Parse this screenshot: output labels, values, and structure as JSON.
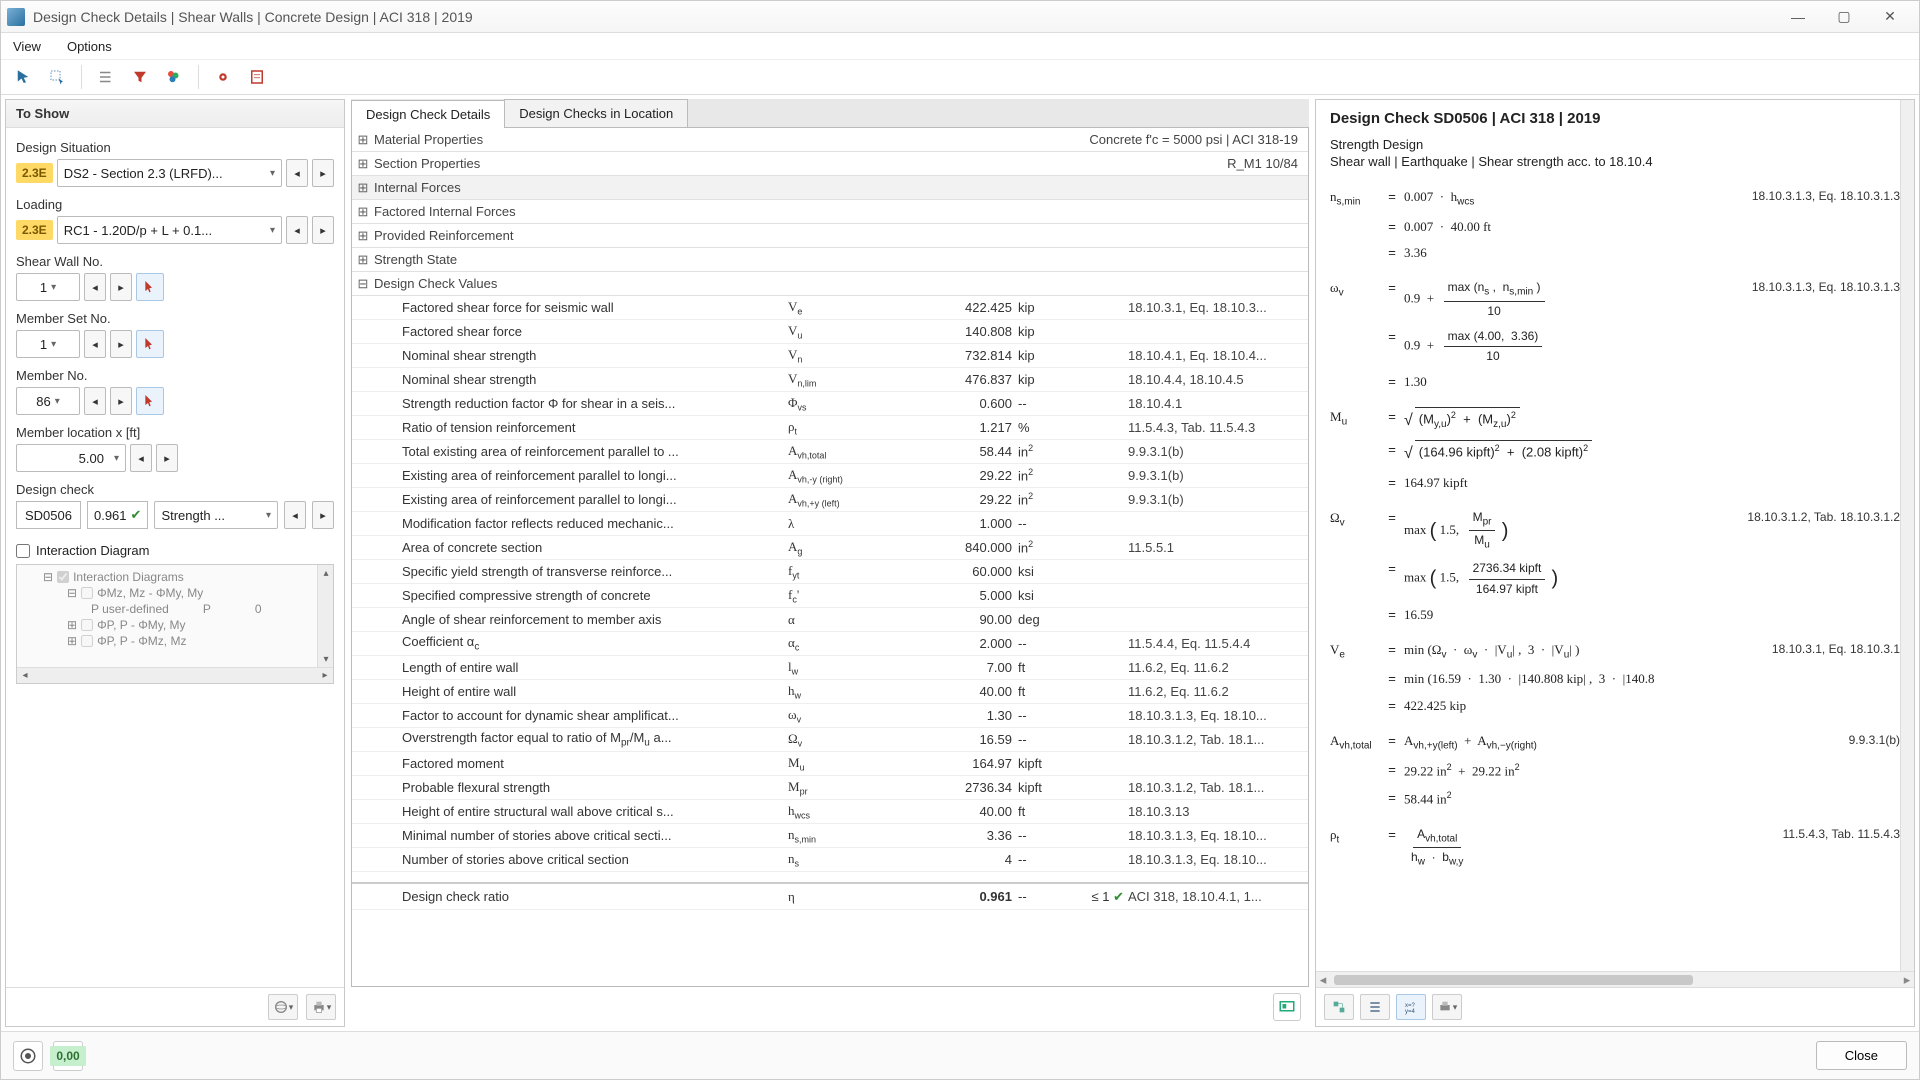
{
  "window": {
    "title": "Design Check Details | Shear Walls | Concrete Design | ACI 318 | 2019"
  },
  "menu": {
    "view": "View",
    "options": "Options"
  },
  "left": {
    "header": "To Show",
    "design_situation_label": "Design Situation",
    "ds_badge": "2.3E",
    "ds_value": "DS2 - Section 2.3 (LRFD)...",
    "loading_label": "Loading",
    "load_badge": "2.3E",
    "load_value": "RC1 - 1.20D/p + L + 0.1...",
    "shearwall_label": "Shear Wall No.",
    "shearwall_value": "1",
    "memberset_label": "Member Set No.",
    "memberset_value": "1",
    "member_label": "Member No.",
    "member_value": "86",
    "location_label": "Member location x [ft]",
    "location_value": "5.00",
    "designcheck_label": "Design check",
    "dc_code": "SD0506",
    "dc_ratio": "0.961",
    "dc_desc": "Strength ...",
    "interaction_label": "Interaction Diagram",
    "tree": {
      "root": "Interaction Diagrams",
      "n1": "ΦMz, Mz - ΦMy, My",
      "n2": "P user-defined",
      "n2_val": "P",
      "n2_num": "0",
      "n3": "ΦP, P - ΦMy, My",
      "n4": "ΦP, P - ΦMz, Mz"
    }
  },
  "tabs": {
    "t1": "Design Check Details",
    "t2": "Design Checks in Location"
  },
  "categories": {
    "material": {
      "label": "Material Properties",
      "right": "Concrete f'c = 5000 psi | ACI 318-19"
    },
    "section": {
      "label": "Section Properties",
      "right": "R_M1 10/84"
    },
    "internal": {
      "label": "Internal Forces"
    },
    "factored": {
      "label": "Factored Internal Forces"
    },
    "provided": {
      "label": "Provided Reinforcement"
    },
    "strength": {
      "label": "Strength State"
    },
    "dcv": {
      "label": "Design Check Values"
    }
  },
  "rows": [
    {
      "desc": "Factored shear force for seismic wall",
      "sym": "V<sub>e</sub>",
      "val": "422.425",
      "unit": "kip",
      "ref": "18.10.3.1, Eq. 18.10.3..."
    },
    {
      "desc": "Factored shear force",
      "sym": "V<sub>u</sub>",
      "val": "140.808",
      "unit": "kip",
      "ref": ""
    },
    {
      "desc": "Nominal shear strength",
      "sym": "V<sub>n</sub>",
      "val": "732.814",
      "unit": "kip",
      "ref": "18.10.4.1, Eq. 18.10.4..."
    },
    {
      "desc": "Nominal shear strength",
      "sym": "V<sub>n,lim</sub>",
      "val": "476.837",
      "unit": "kip",
      "ref": "18.10.4.4, 18.10.4.5"
    },
    {
      "desc": "Strength reduction factor Φ for shear in a seis...",
      "sym": "Φ<sub>vs</sub>",
      "val": "0.600",
      "unit": "--",
      "ref": "18.10.4.1"
    },
    {
      "desc": "Ratio of tension reinforcement",
      "sym": "ρ<sub>t</sub>",
      "val": "1.217",
      "unit": "%",
      "ref": "11.5.4.3, Tab. 11.5.4.3"
    },
    {
      "desc": "Total existing area of reinforcement parallel to ...",
      "sym": "A<sub>vh,total</sub>",
      "val": "58.44",
      "unit": "in<sup>2</sup>",
      "ref": "9.9.3.1(b)"
    },
    {
      "desc": "Existing area of reinforcement parallel to longi...",
      "sym": "A<sub>vh,-y (right)</sub>",
      "val": "29.22",
      "unit": "in<sup>2</sup>",
      "ref": "9.9.3.1(b)"
    },
    {
      "desc": "Existing area of reinforcement parallel to longi...",
      "sym": "A<sub>vh,+y (left)</sub>",
      "val": "29.22",
      "unit": "in<sup>2</sup>",
      "ref": "9.9.3.1(b)"
    },
    {
      "desc": "Modification factor reflects reduced mechanic...",
      "sym": "λ",
      "val": "1.000",
      "unit": "--",
      "ref": ""
    },
    {
      "desc": "Area of concrete section",
      "sym": "A<sub>g</sub>",
      "val": "840.000",
      "unit": "in<sup>2</sup>",
      "ref": "11.5.5.1"
    },
    {
      "desc": "Specific yield strength of transverse reinforce...",
      "sym": "f<sub>yt</sub>",
      "val": "60.000",
      "unit": "ksi",
      "ref": ""
    },
    {
      "desc": "Specified compressive strength of concrete",
      "sym": "f<sub>c</sub>'",
      "val": "5.000",
      "unit": "ksi",
      "ref": ""
    },
    {
      "desc": "Angle of shear reinforcement to member axis",
      "sym": "α",
      "val": "90.00",
      "unit": "deg",
      "ref": ""
    },
    {
      "desc": "Coefficient α<sub>c</sub>",
      "sym": "α<sub>c</sub>",
      "val": "2.000",
      "unit": "--",
      "ref": "11.5.4.4, Eq. 11.5.4.4"
    },
    {
      "desc": "Length of entire wall",
      "sym": "l<sub>w</sub>",
      "val": "7.00",
      "unit": "ft",
      "ref": "11.6.2, Eq. 11.6.2"
    },
    {
      "desc": "Height of entire wall",
      "sym": "h<sub>w</sub>",
      "val": "40.00",
      "unit": "ft",
      "ref": "11.6.2, Eq. 11.6.2"
    },
    {
      "desc": "Factor to account for dynamic shear amplificat...",
      "sym": "ω<sub>v</sub>",
      "val": "1.30",
      "unit": "--",
      "ref": "18.10.3.1.3, Eq. 18.10..."
    },
    {
      "desc": "Overstrength factor equal to ratio of M<sub>pr</sub>/M<sub>u</sub> a...",
      "sym": "Ω<sub>v</sub>",
      "val": "16.59",
      "unit": "--",
      "ref": "18.10.3.1.2, Tab. 18.1..."
    },
    {
      "desc": "Factored moment",
      "sym": "M<sub>u</sub>",
      "val": "164.97",
      "unit": "kipft",
      "ref": ""
    },
    {
      "desc": "Probable flexural strength",
      "sym": "M<sub>pr</sub>",
      "val": "2736.34",
      "unit": "kipft",
      "ref": "18.10.3.1.2, Tab. 18.1..."
    },
    {
      "desc": "Height of entire structural wall above critical s...",
      "sym": "h<sub>wcs</sub>",
      "val": "40.00",
      "unit": "ft",
      "ref": "18.10.3.13"
    },
    {
      "desc": "Minimal number of stories above critical secti...",
      "sym": "n<sub>s,min</sub>",
      "val": "3.36",
      "unit": "--",
      "ref": "18.10.3.1.3, Eq. 18.10..."
    },
    {
      "desc": "Number of stories above critical section",
      "sym": "n<sub>s</sub>",
      "val": "4",
      "unit": "--",
      "ref": "18.10.3.1.3, Eq. 18.10..."
    }
  ],
  "final_row": {
    "desc": "Design check ratio",
    "sym": "η",
    "val": "0.961",
    "unit": "--",
    "limit": "≤ 1",
    "ref": "ACI 318, 18.10.4.1, 1..."
  },
  "right": {
    "title": "Design Check SD0506 | ACI 318 | 2019",
    "sub1": "Strength Design",
    "sub2": "Shear wall | Earthquake | Shear strength acc. to 18.10.4",
    "refs": {
      "r1": "18.10.3.1.3, Eq. 18.10.3.1.3",
      "r2": "18.10.3.1.3, Eq. 18.10.3.1.3",
      "r3": "18.10.3.1.2, Tab. 18.10.3.1.2",
      "r4": "18.10.3.1, Eq. 18.10.3.1",
      "r5": "9.9.3.1(b)",
      "r6": "11.5.4.3, Tab. 11.5.4.3"
    }
  },
  "bottom": {
    "close": "Close",
    "num": "0,00"
  }
}
